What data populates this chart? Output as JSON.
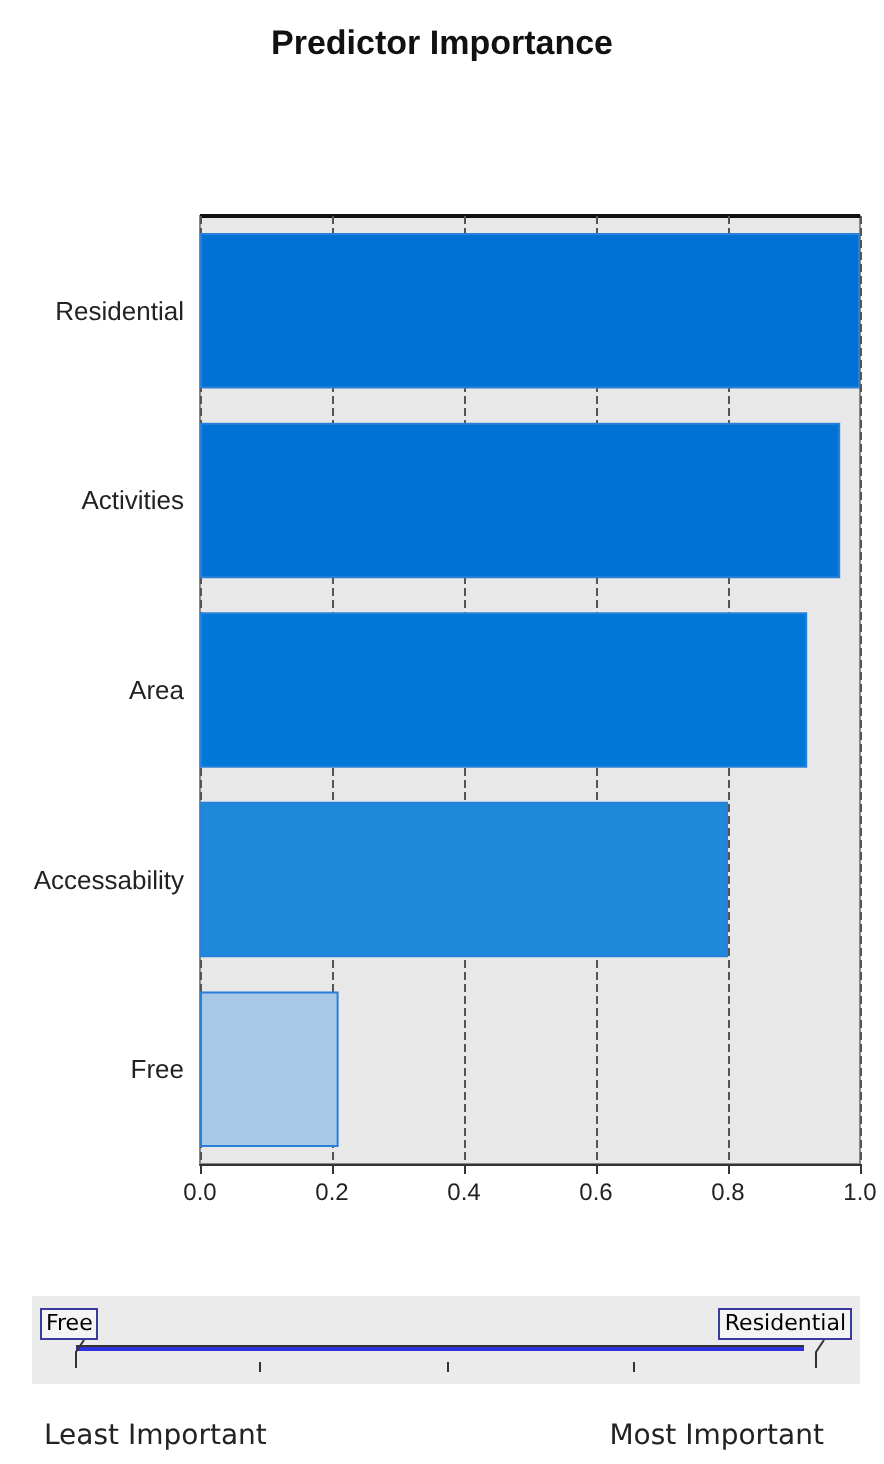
{
  "chart_data": {
    "type": "bar",
    "title": "Predictor Importance",
    "orientation": "horizontal",
    "categories": [
      "Residential",
      "Activities",
      "Area",
      "Accessability",
      "Free"
    ],
    "values": [
      1.0,
      0.97,
      0.92,
      0.8,
      0.21
    ],
    "colors": [
      "#0072d6",
      "#0072d6",
      "#0078d8",
      "#1e88da",
      "#a8c8e6"
    ],
    "xlim": [
      0,
      1
    ],
    "xticks": [
      {
        "value": 0,
        "label": "0.0"
      },
      {
        "value": 0.2,
        "label": "0.2"
      },
      {
        "value": 0.4,
        "label": "0.4"
      },
      {
        "value": 0.6,
        "label": "0.6"
      },
      {
        "value": 0.8,
        "label": "0.8"
      },
      {
        "value": 1,
        "label": "1.0"
      }
    ],
    "grid": "x",
    "annotations": [
      "Free",
      "Residential",
      "Least Important",
      "Most Important"
    ]
  }
}
